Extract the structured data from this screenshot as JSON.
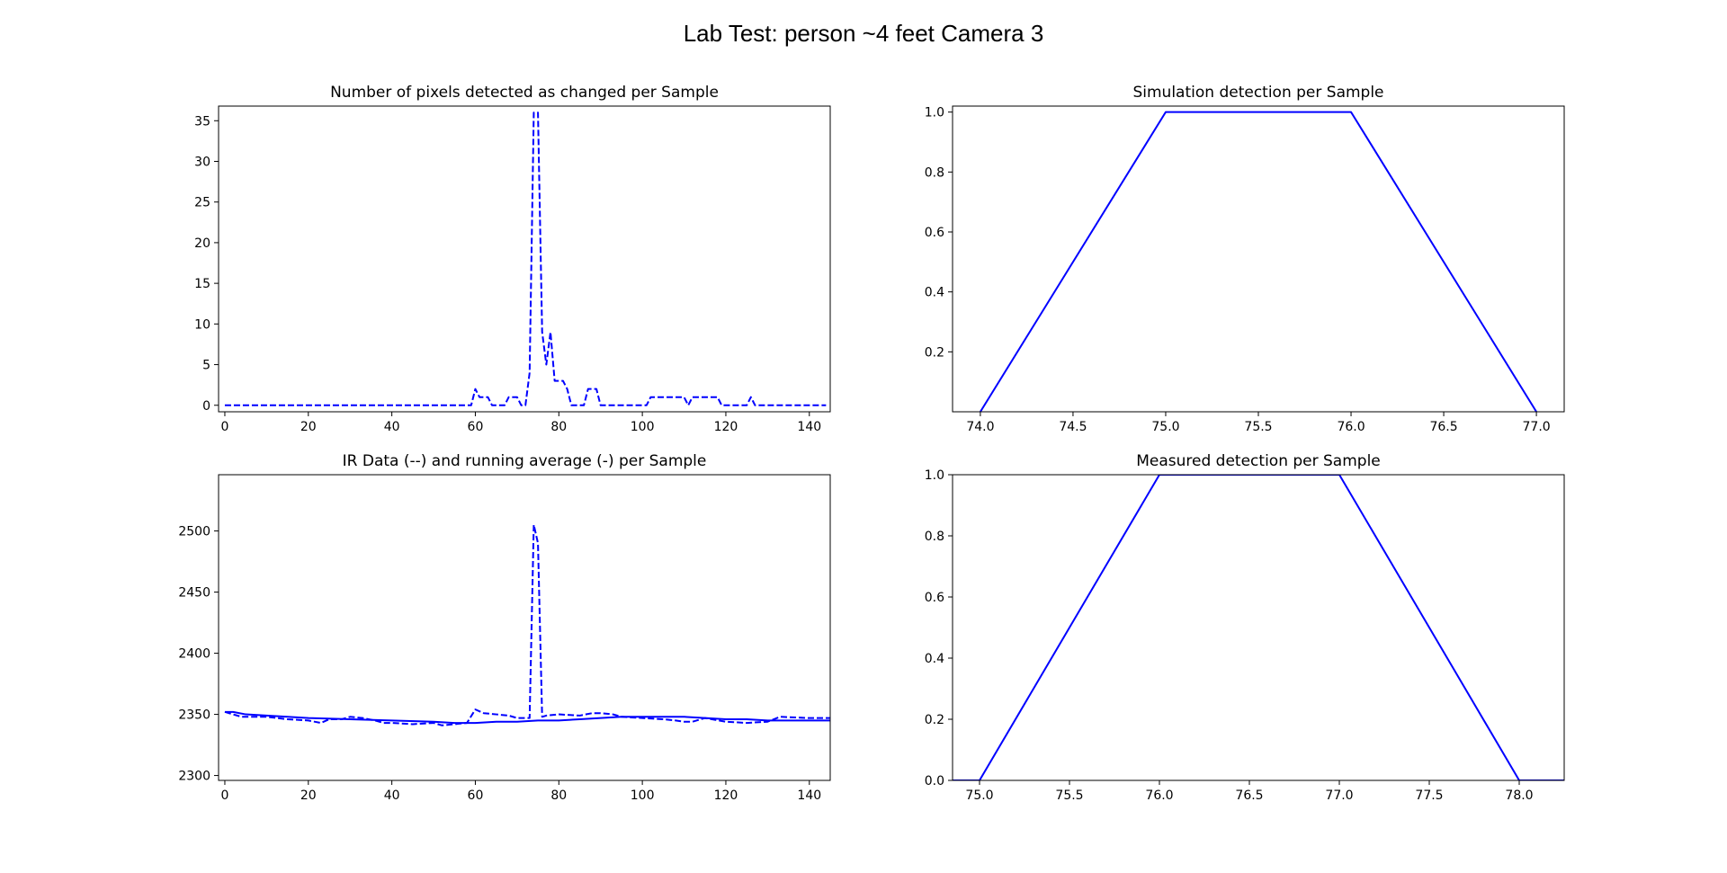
{
  "figure_title": "Lab Test: person ~4 feet Camera 3",
  "colors": {
    "line": "#0000ff",
    "axes": "#000000",
    "background": "#ffffff"
  },
  "chart_data": [
    {
      "id": "pixels-changed",
      "type": "line",
      "title": "Number of pixels detected as changed per Sample",
      "xlabel": "",
      "ylabel": "",
      "xlim": [
        -1.5,
        145
      ],
      "ylim": [
        -0.8,
        36.8
      ],
      "xticks": [
        0,
        20,
        40,
        60,
        80,
        100,
        120,
        140
      ],
      "yticks": [
        0,
        5,
        10,
        15,
        20,
        25,
        30,
        35
      ],
      "tick_format": 0,
      "grid": false,
      "series": [
        {
          "style": "dashed",
          "x": [
            0,
            59,
            60,
            61,
            62,
            63,
            64,
            65,
            66,
            67,
            68,
            69,
            70,
            71,
            72,
            73,
            74,
            75,
            76,
            77,
            78,
            79,
            80,
            81,
            82,
            83,
            84,
            85,
            86,
            87,
            88,
            89,
            90,
            91,
            92,
            93,
            100,
            101,
            102,
            103,
            110,
            111,
            112,
            113,
            118,
            119,
            120,
            125,
            126,
            127,
            144
          ],
          "y": [
            0,
            0,
            2,
            1,
            1,
            1,
            0,
            0,
            0,
            0,
            1,
            1,
            1,
            0,
            0,
            4,
            36,
            36,
            9,
            5,
            9,
            3,
            3,
            3,
            2,
            0,
            0,
            0,
            0,
            2,
            2,
            2,
            0,
            0,
            0,
            0,
            0,
            0,
            1,
            1,
            1,
            0,
            1,
            1,
            1,
            0,
            0,
            0,
            1,
            0,
            0
          ]
        }
      ]
    },
    {
      "id": "simulation-detection",
      "type": "line",
      "title": "Simulation detection per Sample",
      "xlabel": "",
      "ylabel": "",
      "xlim": [
        73.85,
        77.15
      ],
      "ylim": [
        0.0,
        1.02
      ],
      "xticks": [
        74.0,
        74.5,
        75.0,
        75.5,
        76.0,
        76.5,
        77.0
      ],
      "yticks": [
        0.2,
        0.4,
        0.6,
        0.8,
        1.0
      ],
      "tick_format": 1,
      "grid": false,
      "series": [
        {
          "style": "solid",
          "x": [
            74,
            75,
            76,
            77
          ],
          "y": [
            0,
            1,
            1,
            0
          ]
        }
      ]
    },
    {
      "id": "ir-data",
      "type": "line",
      "title": "IR Data (--) and running average (-) per Sample",
      "xlabel": "",
      "ylabel": "",
      "xlim": [
        -1.5,
        145
      ],
      "ylim": [
        2296,
        2546
      ],
      "xticks": [
        0,
        20,
        40,
        60,
        80,
        100,
        120,
        140
      ],
      "yticks": [
        2300,
        2350,
        2400,
        2450,
        2500
      ],
      "tick_format": 0,
      "grid": false,
      "series": [
        {
          "style": "dashed",
          "x": [
            0,
            2,
            4,
            10,
            15,
            20,
            23,
            25,
            28,
            30,
            33,
            36,
            38,
            40,
            45,
            50,
            52,
            55,
            58,
            60,
            62,
            65,
            68,
            70,
            73,
            74,
            75,
            76,
            77,
            80,
            85,
            88,
            90,
            93,
            95,
            100,
            105,
            108,
            110,
            112,
            115,
            120,
            125,
            130,
            133,
            140,
            145
          ],
          "y": [
            2352,
            2350,
            2348,
            2348,
            2346,
            2345,
            2343,
            2346,
            2346,
            2348,
            2347,
            2345,
            2343,
            2343,
            2342,
            2343,
            2341,
            2342,
            2343,
            2354,
            2351,
            2350,
            2349,
            2347,
            2347,
            2505,
            2490,
            2348,
            2349,
            2350,
            2349,
            2351,
            2351,
            2350,
            2348,
            2347,
            2346,
            2345,
            2344,
            2344,
            2347,
            2344,
            2343,
            2344,
            2348,
            2347,
            2347
          ]
        },
        {
          "style": "solid",
          "x": [
            0,
            2,
            5,
            10,
            20,
            30,
            40,
            50,
            55,
            60,
            65,
            70,
            75,
            80,
            85,
            90,
            95,
            100,
            110,
            115,
            120,
            125,
            130,
            145
          ],
          "y": [
            2352,
            2352,
            2350,
            2349,
            2347,
            2346,
            2345,
            2344,
            2343,
            2343,
            2344,
            2344,
            2345,
            2345,
            2346,
            2347,
            2348,
            2348,
            2348,
            2347,
            2346,
            2346,
            2345,
            2345
          ]
        }
      ]
    },
    {
      "id": "measured-detection",
      "type": "line",
      "title": "Measured detection per Sample",
      "xlabel": "",
      "ylabel": "",
      "xlim": [
        74.85,
        78.25
      ],
      "ylim": [
        0.0,
        1.0
      ],
      "xticks": [
        75.0,
        75.5,
        76.0,
        76.5,
        77.0,
        77.5,
        78.0
      ],
      "yticks": [
        0.0,
        0.2,
        0.4,
        0.6,
        0.8,
        1.0
      ],
      "tick_format": 1,
      "grid": false,
      "series": [
        {
          "style": "solid",
          "x": [
            74.85,
            75,
            76,
            77,
            78,
            78.25
          ],
          "y": [
            0,
            0,
            1,
            1,
            0,
            0
          ]
        }
      ]
    }
  ]
}
